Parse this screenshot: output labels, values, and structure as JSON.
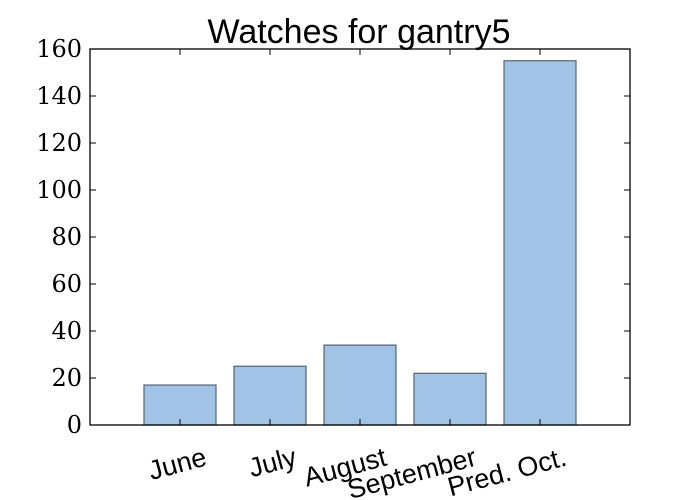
{
  "chart_data": {
    "type": "bar",
    "title": "Watches for gantry5",
    "categories": [
      "June",
      "July",
      "August",
      "September",
      "Pred. Oct."
    ],
    "values": [
      17,
      25,
      34,
      22,
      155
    ],
    "ylim": [
      0,
      160
    ],
    "yticks": [
      0,
      20,
      40,
      60,
      80,
      100,
      120,
      140,
      160
    ],
    "xlabel": "",
    "ylabel": "",
    "bar_color": "#a1c4e6",
    "bar_edge_color": "#56626e",
    "grid": false,
    "legend": "none"
  }
}
